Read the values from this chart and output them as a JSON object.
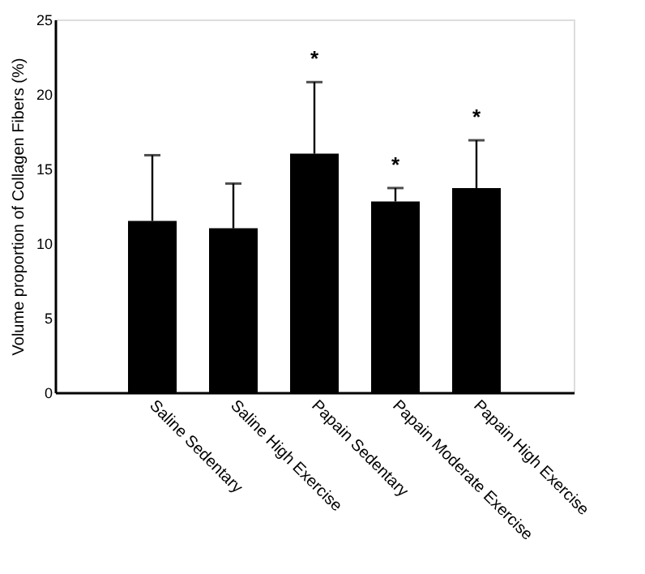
{
  "chart_data": {
    "type": "bar",
    "ylabel": "Volume proportion of Collagen Fibers (%)",
    "categories": [
      "Saline Sedentary",
      "Saline High Exercise",
      "Papain Sedentary",
      "Papain Moderate Exercise",
      "Papain High Exercise"
    ],
    "values": [
      11.5,
      11.0,
      16.0,
      12.8,
      13.7
    ],
    "color": "#000000",
    "errors": [
      [
        11.5,
        15.9
      ],
      [
        11.0,
        14.0
      ],
      [
        16.0,
        20.8
      ],
      [
        12.8,
        13.7
      ],
      [
        13.7,
        16.9
      ]
    ],
    "ylim": [
      0,
      25
    ],
    "yticks": [
      0,
      5,
      10,
      15,
      20,
      25
    ],
    "grid": false,
    "annotations": [
      {
        "text": "*",
        "x": "Papain Sedentary",
        "y": 20.8
      },
      {
        "text": "*",
        "x": "Papain Moderate Exercise",
        "y": 13.7
      },
      {
        "text": "*",
        "x": "Papain High Exercise",
        "y": 16.9
      }
    ]
  }
}
